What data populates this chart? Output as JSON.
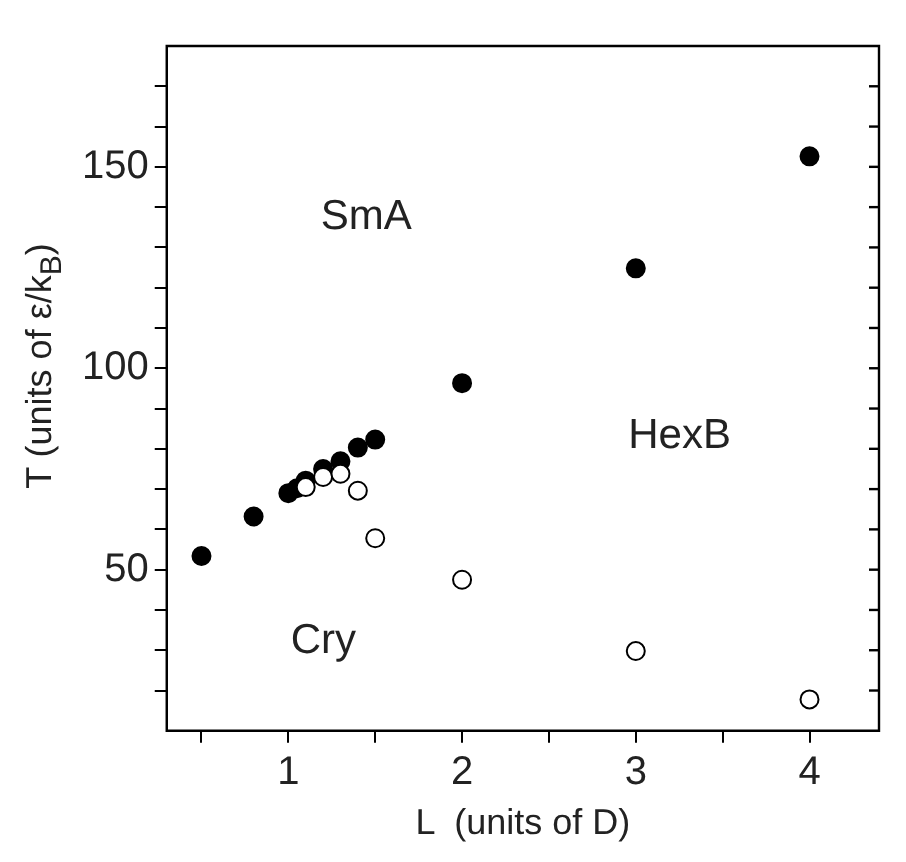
{
  "chart_data": {
    "type": "scatter",
    "xlabel": "L  (units of D)",
    "ylabel": "T  (units of ε/k$_{B}$)",
    "series": [
      {
        "color": "#000000",
        "x": [
          0.5,
          0.8,
          1.0,
          1.05,
          1.1,
          1.2,
          1.3,
          1.4,
          1.5,
          2.0,
          3.0,
          4.0
        ],
        "values": [
          53.4,
          63.2,
          69.0,
          70.2,
          72.1,
          75.0,
          76.9,
          80.3,
          82.3,
          96.3,
          124.8,
          152.6
        ]
      },
      {
        "color": "#ffffff",
        "x": [
          1.1,
          1.2,
          1.3,
          1.4,
          1.5,
          2.0,
          3.0,
          4.0
        ],
        "values": [
          70.5,
          73.0,
          73.8,
          69.6,
          57.8,
          47.5,
          29.8,
          17.8
        ]
      }
    ],
    "xlim": [
      0.3,
      4.4
    ],
    "xticks": [
      {
        "value": 0.5,
        "label": null
      },
      1,
      {
        "value": 1.5,
        "label": null
      },
      2,
      {
        "value": 2.5,
        "label": null
      },
      3,
      {
        "value": 3.5,
        "label": null
      },
      4
    ],
    "ylim": [
      10,
      180
    ],
    "yticks": [
      {
        "value": 20,
        "label": null
      },
      {
        "value": 30,
        "label": null
      },
      {
        "value": 40,
        "label": null
      },
      50,
      {
        "value": 60,
        "label": null
      },
      {
        "value": 70,
        "label": null
      },
      {
        "value": 80,
        "label": null
      },
      {
        "value": 90,
        "label": null
      },
      100,
      {
        "value": 110,
        "label": null
      },
      {
        "value": 120,
        "label": null
      },
      {
        "value": 130,
        "label": null
      },
      {
        "value": 140,
        "label": null
      },
      150,
      {
        "value": 160,
        "label": null
      },
      {
        "value": 170,
        "label": null
      }
    ],
    "marker": "circle",
    "grid": false,
    "legend": false,
    "annotations": [
      "SmA",
      "HexB",
      "Cry"
    ]
  }
}
